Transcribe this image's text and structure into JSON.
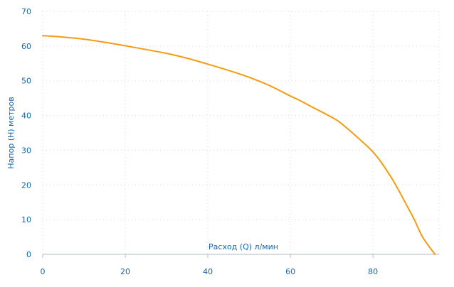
{
  "chart_data": {
    "type": "line",
    "title": "",
    "xlabel": "Расход (Q) л/мин",
    "ylabel": "Напор (H) метров",
    "xlim": [
      0,
      96
    ],
    "ylim": [
      0,
      70
    ],
    "x_ticks": [
      0,
      20,
      40,
      60,
      80
    ],
    "y_ticks": [
      0,
      10,
      20,
      30,
      40,
      50,
      60,
      70
    ],
    "grid": true,
    "series": [
      {
        "color": "#f39c12",
        "x": [
          0,
          5,
          10,
          15,
          20,
          25,
          30,
          35,
          40,
          45,
          50,
          55,
          60,
          62,
          65,
          70,
          72,
          75,
          78,
          80,
          82,
          85,
          88,
          90,
          92,
          95
        ],
        "y": [
          63,
          62.6,
          62,
          61.1,
          60.1,
          59,
          57.9,
          56.5,
          54.8,
          53,
          51,
          48.6,
          45.6,
          44.5,
          42.6,
          39.5,
          38,
          35,
          31.8,
          29.5,
          26.5,
          21,
          14.5,
          10,
          5,
          0
        ]
      }
    ]
  }
}
